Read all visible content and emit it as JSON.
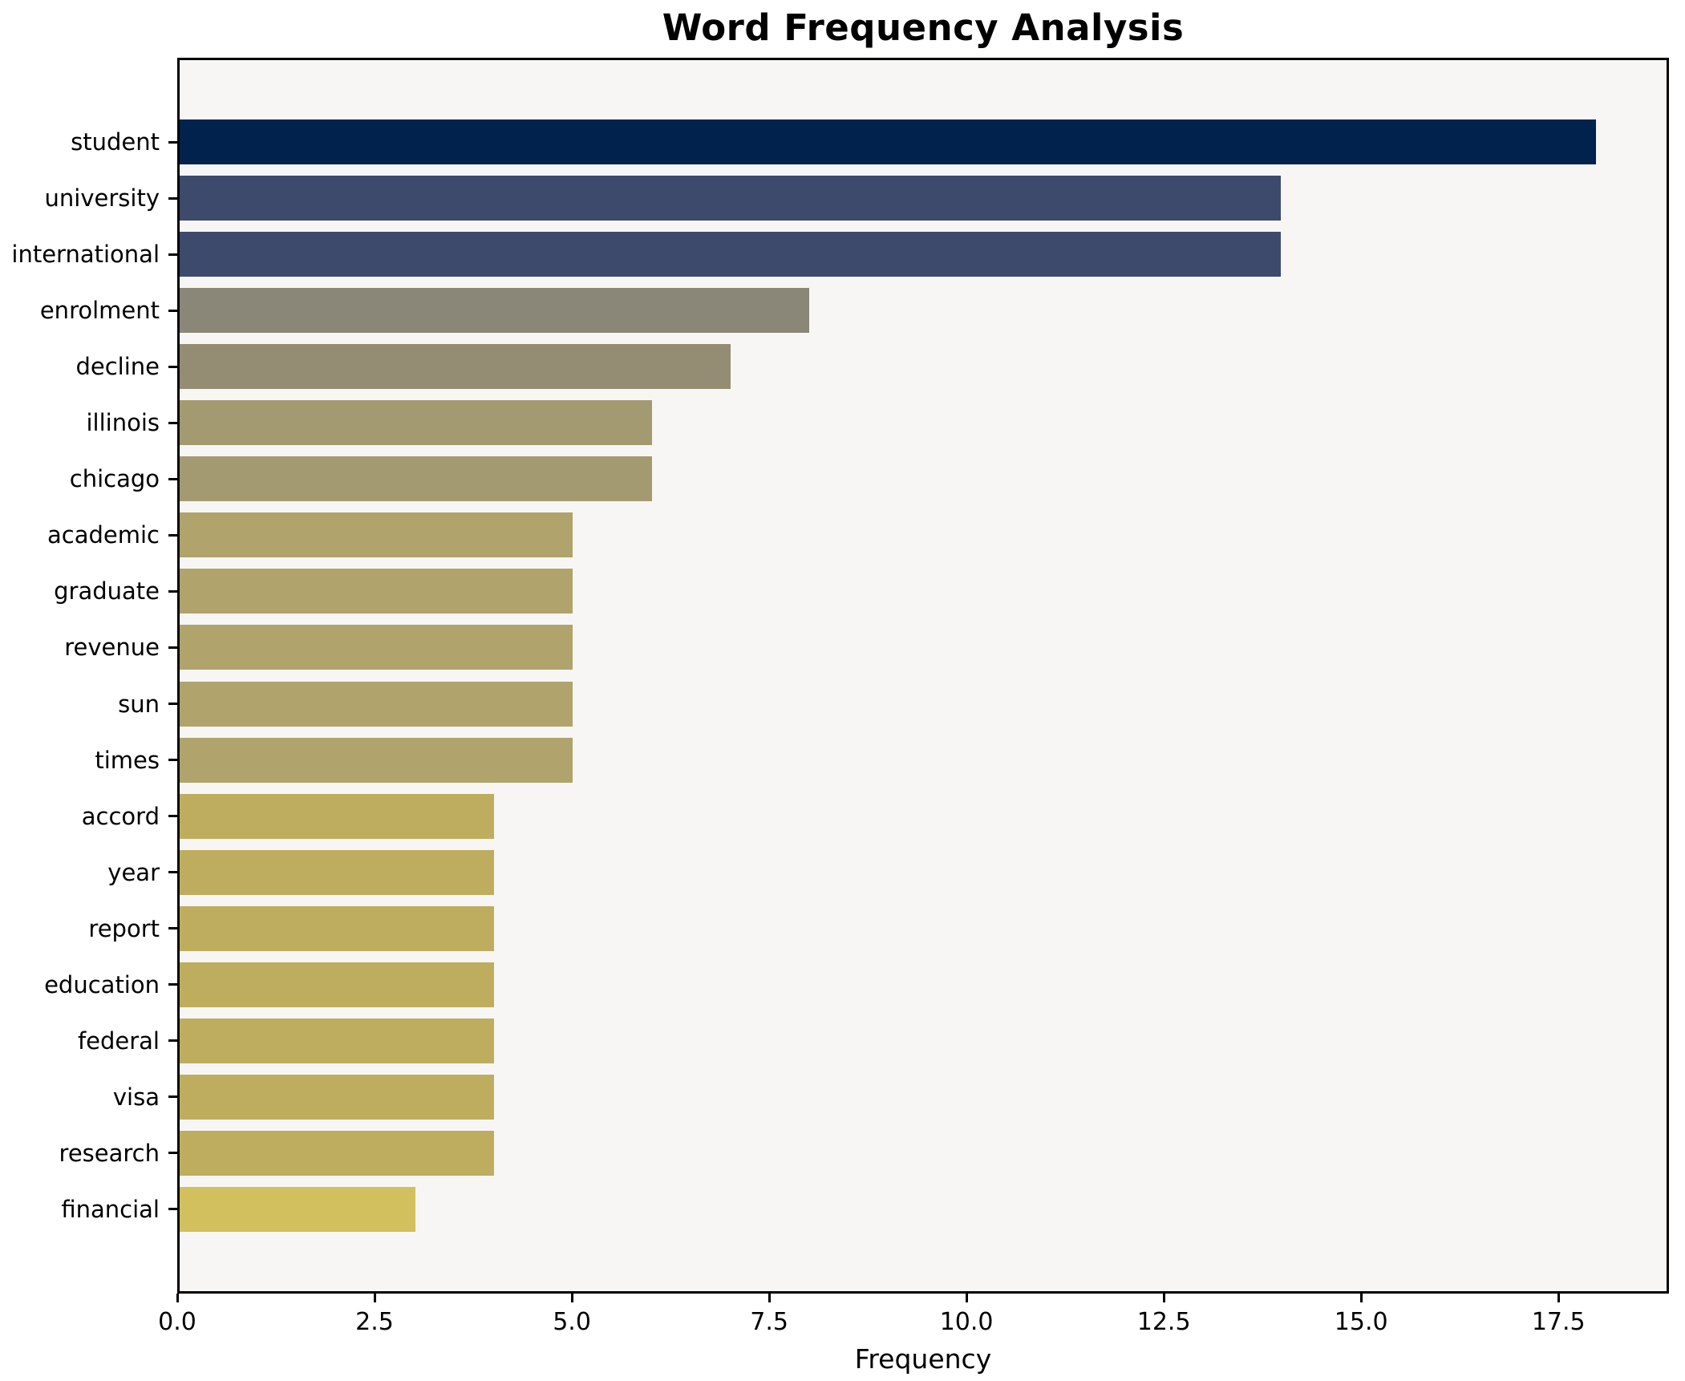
{
  "chart_data": {
    "type": "bar",
    "orientation": "horizontal",
    "title": "Word Frequency Analysis",
    "xlabel": "Frequency",
    "ylabel": "",
    "xlim": [
      0,
      18.9
    ],
    "xticks": [
      0,
      2.5,
      5,
      7.5,
      10,
      12.5,
      15,
      17.5
    ],
    "xtick_labels": [
      "0.0",
      "2.5",
      "5.0",
      "7.5",
      "10.0",
      "12.5",
      "15.0",
      "17.5"
    ],
    "grid": false,
    "legend_position": "none",
    "plot_background": "#f7f6f5",
    "axis_color": "#000000",
    "categories": [
      "student",
      "university",
      "international",
      "enrolment",
      "decline",
      "illinois",
      "chicago",
      "academic",
      "graduate",
      "revenue",
      "sun",
      "times",
      "accord",
      "year",
      "report",
      "education",
      "federal",
      "visa",
      "research",
      "financial"
    ],
    "values": [
      18,
      14,
      14,
      8,
      7,
      6,
      6,
      5,
      5,
      5,
      5,
      5,
      4,
      4,
      4,
      4,
      4,
      4,
      4,
      3
    ],
    "bar_colors": [
      "#01224d",
      "#3d4a6b",
      "#3d4a6b",
      "#8a8779",
      "#948d74",
      "#a49a72",
      "#a49a72",
      "#b0a36b",
      "#b0a36b",
      "#b0a36b",
      "#b0a36b",
      "#b0a36b",
      "#bfad5f",
      "#bfad5f",
      "#bfad5f",
      "#bfad5f",
      "#bfad5f",
      "#bfad5f",
      "#bfad5f",
      "#d2bf5e"
    ]
  }
}
